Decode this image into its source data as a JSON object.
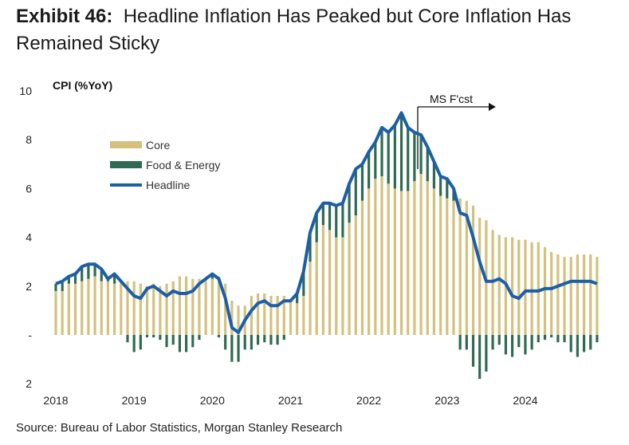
{
  "title": {
    "exhibit": "Exhibit 46:",
    "line1": "Headline Inflation Has Peaked but Core Inflation Has",
    "line2": "Remained Sticky"
  },
  "source": "Source: Bureau of Labor Statistics, Morgan Stanley Research",
  "colors": {
    "core": "#D4C17E",
    "food_energy": "#2E6B52",
    "headline": "#1C5FA8",
    "neg_tick": "#CC0000"
  },
  "chart_data": {
    "type": "bar",
    "title": "Headline Inflation Has Peaked but Core Inflation Has Remained Sticky",
    "ylabel": "CPI (%YoY)",
    "xlabel": "",
    "ylim": [
      -2,
      10
    ],
    "yticks": [
      {
        "v": 10,
        "label": "10"
      },
      {
        "v": 8,
        "label": "8"
      },
      {
        "v": 6,
        "label": "6"
      },
      {
        "v": 4,
        "label": "4"
      },
      {
        "v": 2,
        "label": "2"
      },
      {
        "v": 0,
        "label": "-"
      },
      {
        "v": -2,
        "label": "2"
      }
    ],
    "xticks": [
      "2018",
      "2019",
      "2020",
      "2021",
      "2022",
      "2023",
      "2024"
    ],
    "legend": [
      "Core",
      "Food & Energy",
      "Headline"
    ],
    "legend_position": "top-left",
    "annotation": "MS F'cst",
    "forecast_start": "2022-08",
    "start": "2018-01",
    "frequency": "monthly",
    "series": [
      {
        "name": "Core",
        "type": "bar",
        "values": [
          1.8,
          1.8,
          2.1,
          2.1,
          2.2,
          2.3,
          2.4,
          2.2,
          2.2,
          2.1,
          2.2,
          2.2,
          2.2,
          2.1,
          2.0,
          2.1,
          2.0,
          2.1,
          2.2,
          2.4,
          2.4,
          2.3,
          2.3,
          2.3,
          2.3,
          2.4,
          2.1,
          1.4,
          1.2,
          1.2,
          1.6,
          1.7,
          1.7,
          1.6,
          1.6,
          1.6,
          1.4,
          1.3,
          1.6,
          3.0,
          3.8,
          4.5,
          4.3,
          4.0,
          4.0,
          4.6,
          4.9,
          5.5,
          6.0,
          6.4,
          6.5,
          6.2,
          6.0,
          5.9,
          5.9,
          6.3,
          6.6,
          6.3,
          6.0,
          5.7,
          5.6,
          5.5,
          5.6,
          5.5,
          5.3,
          4.8,
          4.7,
          4.3,
          4.1,
          4.0,
          4.0,
          3.9,
          3.9,
          3.8,
          3.8,
          3.6,
          3.4,
          3.3,
          3.2,
          3.2,
          3.3,
          3.3,
          3.3,
          3.2
        ]
      },
      {
        "name": "Food & Energy",
        "type": "bar",
        "values": [
          0.3,
          0.4,
          0.3,
          0.4,
          0.6,
          0.6,
          0.5,
          0.5,
          0.1,
          0.4,
          0.0,
          -0.3,
          -0.7,
          -0.6,
          -0.1,
          -0.1,
          -0.2,
          -0.5,
          -0.4,
          -0.7,
          -0.7,
          -0.5,
          -0.2,
          0.0,
          0.2,
          -0.1,
          -0.6,
          -1.1,
          -1.1,
          -0.6,
          -0.6,
          -0.4,
          -0.3,
          -0.4,
          -0.4,
          -0.2,
          0.0,
          0.4,
          1.0,
          1.2,
          1.2,
          0.9,
          1.1,
          1.3,
          1.4,
          1.6,
          1.9,
          1.5,
          1.5,
          1.5,
          2.0,
          2.1,
          2.6,
          3.2,
          2.6,
          2.0,
          1.6,
          1.4,
          1.1,
          0.8,
          0.8,
          0.5,
          -0.6,
          -0.6,
          -1.3,
          -1.8,
          -1.5,
          -0.6,
          -0.4,
          -0.8,
          -0.9,
          -0.5,
          -0.8,
          -0.6,
          -0.3,
          -0.2,
          -0.1,
          -0.3,
          -0.3,
          -0.7,
          -0.9,
          -0.7,
          -0.6,
          -0.3
        ]
      },
      {
        "name": "Headline",
        "type": "line",
        "values": [
          2.1,
          2.2,
          2.4,
          2.5,
          2.8,
          2.9,
          2.9,
          2.7,
          2.3,
          2.5,
          2.2,
          1.9,
          1.6,
          1.5,
          1.9,
          2.0,
          1.8,
          1.6,
          1.8,
          1.7,
          1.7,
          1.8,
          2.1,
          2.3,
          2.5,
          2.3,
          1.5,
          0.3,
          0.1,
          0.6,
          1.0,
          1.3,
          1.4,
          1.2,
          1.2,
          1.4,
          1.4,
          1.7,
          2.6,
          4.2,
          5.0,
          5.4,
          5.4,
          5.3,
          5.4,
          6.2,
          6.8,
          7.0,
          7.5,
          7.9,
          8.5,
          8.3,
          8.6,
          9.1,
          8.5,
          8.3,
          8.2,
          7.7,
          7.1,
          6.5,
          6.4,
          6.0,
          5.0,
          4.9,
          4.0,
          3.0,
          2.2,
          2.2,
          2.3,
          2.1,
          1.6,
          1.5,
          1.8,
          1.8,
          1.8,
          1.9,
          1.9,
          2.0,
          2.1,
          2.2,
          2.2,
          2.2,
          2.2,
          2.1
        ]
      }
    ]
  }
}
